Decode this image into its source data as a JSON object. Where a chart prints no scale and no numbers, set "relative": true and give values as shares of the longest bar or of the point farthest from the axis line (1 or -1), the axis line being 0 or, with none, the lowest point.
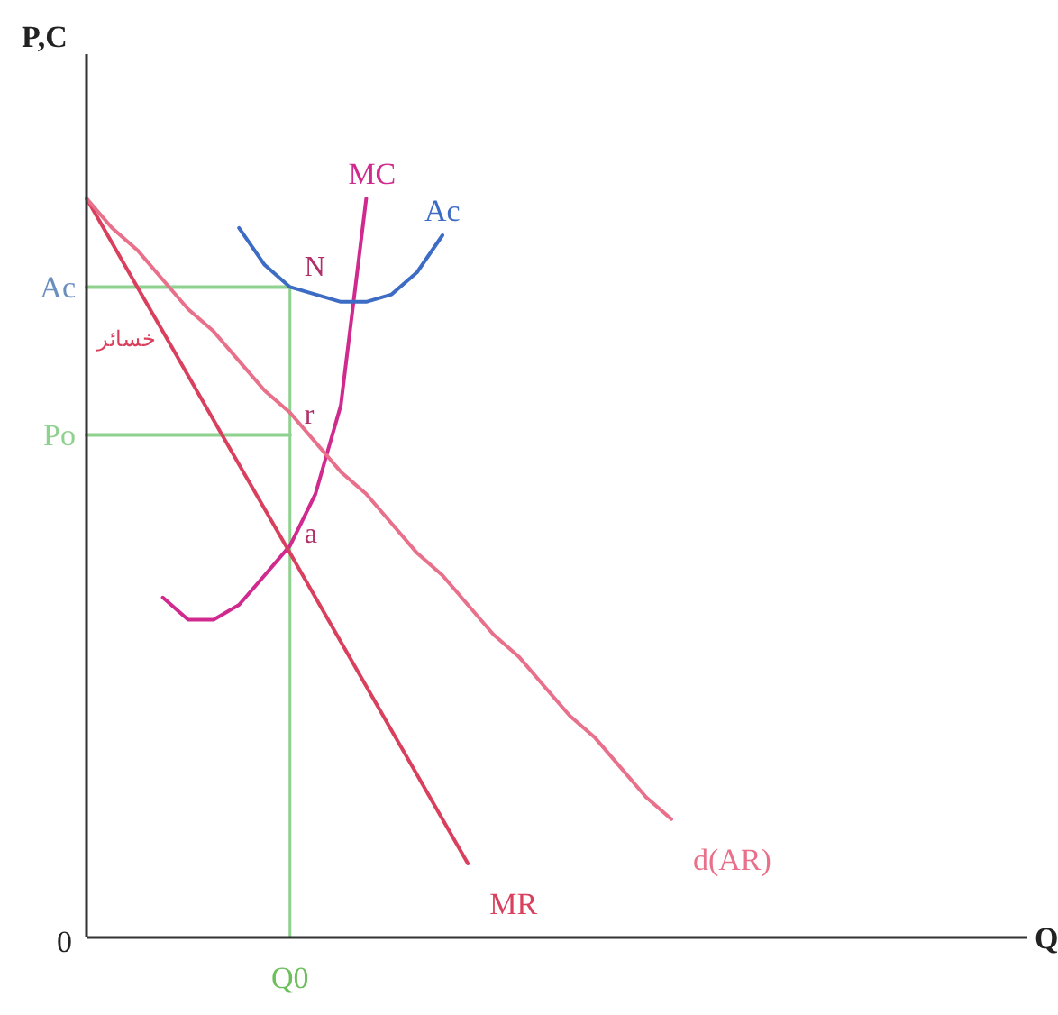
{
  "chart_data": {
    "type": "line",
    "relative": true,
    "xlabel": "Q",
    "ylabel": "P,C",
    "line_style": "solid",
    "categories": [
      null,
      null,
      null,
      null,
      null,
      null,
      null,
      null,
      null,
      null,
      null,
      null,
      null,
      null,
      null,
      null,
      null,
      null,
      null,
      null,
      null,
      null,
      null,
      null,
      null,
      null,
      null,
      null,
      null,
      null,
      null,
      null,
      null,
      null,
      null,
      null,
      null,
      null
    ],
    "series": [
      {
        "name": "d(AR)",
        "color": "#e8708a",
        "values": [
          1,
          0.96,
          0.93,
          0.89,
          0.85,
          0.82,
          0.78,
          0.74,
          0.71,
          0.67,
          0.63,
          0.6,
          0.56,
          0.52,
          0.49,
          0.45,
          0.41,
          0.38,
          0.34,
          0.3,
          0.27,
          0.23,
          0.19,
          0.16,
          null,
          null,
          null,
          null,
          null,
          null,
          null,
          null,
          null,
          null,
          null,
          null,
          null,
          null
        ]
      },
      {
        "name": "MR",
        "color": "#d9405e",
        "values": [
          1,
          0.94,
          0.88,
          0.82,
          0.76,
          0.7,
          0.64,
          0.58,
          0.52,
          0.46,
          0.4,
          0.34,
          0.28,
          0.22,
          0.16,
          0.1,
          null,
          null,
          null,
          null,
          null,
          null,
          null,
          null,
          null,
          null,
          null,
          null,
          null,
          null,
          null,
          null,
          null,
          null,
          null,
          null,
          null,
          null
        ]
      },
      {
        "name": "Ac",
        "color": "#3d6cc4",
        "values": [
          null,
          null,
          null,
          null,
          null,
          null,
          0.96,
          0.91,
          0.88,
          0.87,
          0.86,
          0.86,
          0.87,
          0.9,
          0.95,
          null,
          null,
          null,
          null,
          null,
          null,
          null,
          null,
          null,
          null,
          null,
          null,
          null,
          null,
          null,
          null,
          null,
          null,
          null,
          null,
          null,
          null,
          null
        ]
      },
      {
        "name": "MC",
        "color": "#d12a8f",
        "values": [
          null,
          null,
          null,
          0.46,
          0.43,
          0.43,
          0.45,
          0.49,
          0.53,
          0.6,
          0.72,
          1,
          null,
          null,
          null,
          null,
          null,
          null,
          null,
          null,
          null,
          null,
          null,
          null,
          null,
          null,
          null,
          null,
          null,
          null,
          null,
          null,
          null,
          null,
          null,
          null,
          null,
          null
        ]
      },
      {
        "color": "#8fd18f",
        "values": [
          0.88,
          0.88,
          0.88,
          0.88,
          0.88,
          0.88,
          0.88,
          0.88,
          0.88,
          null,
          null,
          null,
          null,
          null,
          null,
          null,
          null,
          null,
          null,
          null,
          null,
          null,
          null,
          null,
          null,
          null,
          null,
          null,
          null,
          null,
          null,
          null,
          null,
          null,
          null,
          null,
          null,
          null
        ]
      },
      {
        "color": "#8fd18f",
        "values": [
          0.68,
          0.68,
          0.68,
          0.68,
          0.68,
          0.68,
          0.68,
          0.68,
          0.68,
          null,
          null,
          null,
          null,
          null,
          null,
          null,
          null,
          null,
          null,
          null,
          null,
          null,
          null,
          null,
          null,
          null,
          null,
          null,
          null,
          null,
          null,
          null,
          null,
          null,
          null,
          null,
          null,
          null
        ]
      }
    ],
    "ref_lines": [
      {
        "axis": "x",
        "value": "Q0",
        "color": "#8fd18f"
      }
    ],
    "annotations": [
      "Ac",
      "Po",
      "0",
      "N",
      "r",
      "a",
      "خسائر"
    ]
  }
}
